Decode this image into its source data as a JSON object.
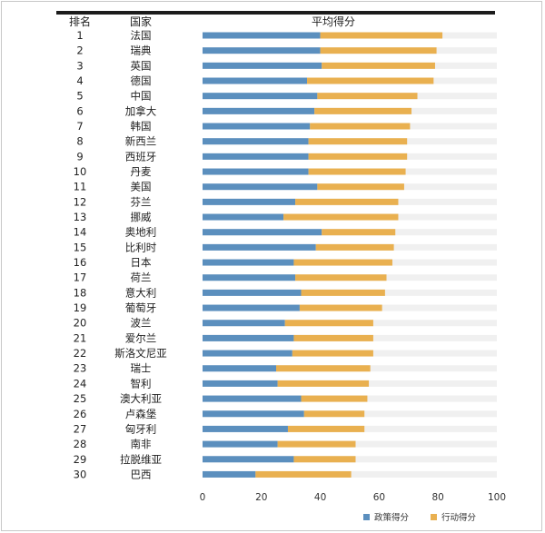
{
  "chart_data": {
    "type": "bar",
    "stacked": true,
    "orientation": "horizontal",
    "headers": {
      "rank": "排名",
      "country": "国家",
      "score": "平均得分"
    },
    "ranks": [
      "1",
      "2",
      "3",
      "4",
      "5",
      "6",
      "7",
      "8",
      "9",
      "10",
      "11",
      "12",
      "13",
      "14",
      "15",
      "16",
      "17",
      "18",
      "19",
      "20",
      "21",
      "22",
      "23",
      "24",
      "25",
      "26",
      "27",
      "28",
      "29",
      "30"
    ],
    "categories": [
      "法国",
      "瑞典",
      "英国",
      "德国",
      "中国",
      "加拿大",
      "韩国",
      "新西兰",
      "西班牙",
      "丹麦",
      "美国",
      "芬兰",
      "挪威",
      "奥地利",
      "比利时",
      "日本",
      "荷兰",
      "意大利",
      "葡萄牙",
      "波兰",
      "爱尔兰",
      "斯洛文尼亚",
      "瑞士",
      "智利",
      "澳大利亚",
      "卢森堡",
      "匈牙利",
      "南非",
      "拉脱维亚",
      "巴西"
    ],
    "series": [
      {
        "name": "政策得分",
        "color": "#5b8fbe",
        "values": [
          40,
          40,
          40.5,
          35.5,
          39,
          38,
          36.5,
          36,
          36,
          36,
          39,
          31.5,
          27.5,
          40.5,
          38.5,
          31,
          31.5,
          33.5,
          33,
          28,
          31,
          30.5,
          25,
          25.5,
          33.5,
          34.5,
          29,
          25.5,
          31,
          18
        ]
      },
      {
        "name": "行动得分",
        "color": "#e9b050",
        "values": [
          41.5,
          39.5,
          38.5,
          43,
          34,
          33,
          34,
          33.5,
          33.5,
          33,
          29.5,
          35,
          39,
          25,
          26.5,
          33.5,
          31,
          28.5,
          28,
          30,
          27,
          27.5,
          32,
          31,
          22.5,
          20.5,
          26,
          26.5,
          21,
          32.5
        ]
      }
    ],
    "xlim": [
      0,
      100
    ],
    "xticks": [
      "0",
      "20",
      "40",
      "60",
      "80",
      "100"
    ],
    "legend_position": "bottom-right",
    "background_track": true
  }
}
